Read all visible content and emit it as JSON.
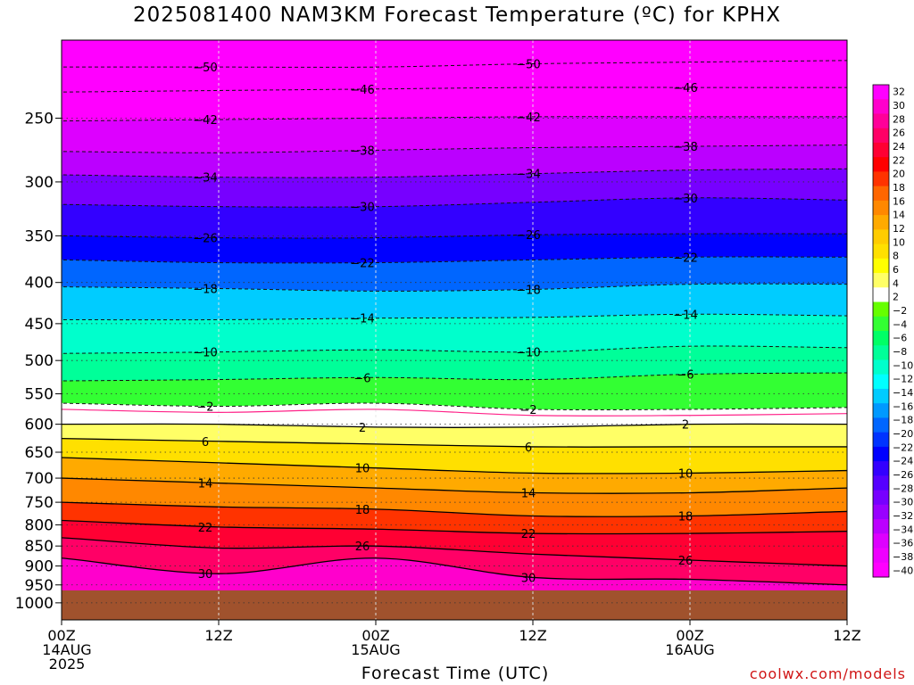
{
  "title": "2025081400 NAM3KM Forecast Temperature (ºC) for KPHX",
  "credit": "coolwx.com/models",
  "chart_data": {
    "type": "heatmap",
    "title": "2025081400 NAM3KM Forecast Temperature (ºC) for KPHX",
    "xlabel": "Forecast Time (UTC)",
    "ylabel": "",
    "y_scale": "log pressure (hPa), inverted",
    "ylim": [
      1050,
      200
    ],
    "xlim_hours": [
      0,
      60
    ],
    "x_ticks": [
      {
        "hour": 0,
        "lines": [
          "00Z",
          "14AUG",
          "2025"
        ]
      },
      {
        "hour": 12,
        "lines": [
          "12Z"
        ]
      },
      {
        "hour": 24,
        "lines": [
          "00Z",
          "15AUG"
        ]
      },
      {
        "hour": 36,
        "lines": [
          "12Z"
        ]
      },
      {
        "hour": 48,
        "lines": [
          "00Z",
          "16AUG"
        ]
      },
      {
        "hour": 60,
        "lines": [
          "12Z"
        ]
      }
    ],
    "y_ticks": [
      250,
      300,
      350,
      400,
      450,
      500,
      550,
      600,
      650,
      700,
      750,
      800,
      850,
      900,
      950,
      1000
    ],
    "grid": true,
    "surface_pressure_hpa": 965,
    "colorbar": {
      "labels": [
        32,
        30,
        28,
        26,
        24,
        22,
        20,
        18,
        16,
        14,
        12,
        10,
        8,
        6,
        4,
        2,
        -2,
        -4,
        -6,
        -8,
        -10,
        -12,
        -14,
        -16,
        -18,
        -20,
        -22,
        -24,
        -26,
        -28,
        -30,
        -32,
        -34,
        -36,
        -38,
        -40
      ],
      "colors": [
        "#ff00ff",
        "#ff00cc",
        "#ff0099",
        "#ff0066",
        "#ff0033",
        "#ff0000",
        "#ff3300",
        "#ff6600",
        "#ff8800",
        "#ffaa00",
        "#ffcc00",
        "#ffe000",
        "#ffff00",
        "#ffff66",
        "#ffffff",
        "#66ff00",
        "#33ff33",
        "#00ff66",
        "#00ff99",
        "#00ffcc",
        "#00ffff",
        "#00ccff",
        "#0099ff",
        "#0066ff",
        "#0033ff",
        "#0000ff",
        "#3300ff",
        "#5500ff",
        "#7700ff",
        "#9900ff",
        "#bb00ff",
        "#dd00ff",
        "#ee00ff",
        "#ff00ff"
      ]
    },
    "series": [
      {
        "label": "-50",
        "values": [
          216,
          216,
          216,
          214,
          213,
          212
        ]
      },
      {
        "label": "-46",
        "values": [
          232,
          231,
          230,
          229,
          229,
          229
        ]
      },
      {
        "label": "-42",
        "values": [
          252,
          251,
          250,
          249,
          249,
          249
        ]
      },
      {
        "label": "-38",
        "values": [
          275,
          276,
          274,
          272,
          271,
          270
        ]
      },
      {
        "label": "-34",
        "values": [
          294,
          296,
          296,
          293,
          290,
          289
        ]
      },
      {
        "label": "-30",
        "values": [
          320,
          322,
          322,
          318,
          314,
          316
        ]
      },
      {
        "label": "-26",
        "values": [
          350,
          352,
          352,
          349,
          348,
          348
        ]
      },
      {
        "label": "-22",
        "values": [
          375,
          378,
          378,
          375,
          372,
          372
        ]
      },
      {
        "label": "-18",
        "values": [
          405,
          407,
          410,
          408,
          402,
          402
        ]
      },
      {
        "label": "-14",
        "values": [
          445,
          445,
          443,
          442,
          438,
          440
        ]
      },
      {
        "label": "-10",
        "values": [
          490,
          488,
          485,
          488,
          480,
          482
        ]
      },
      {
        "label": "-6",
        "values": [
          530,
          528,
          525,
          528,
          520,
          518
        ]
      },
      {
        "label": "-2",
        "values": [
          565,
          570,
          565,
          575,
          575,
          572
        ]
      },
      {
        "label": "2",
        "values": [
          600,
          600,
          605,
          605,
          600,
          600
        ]
      },
      {
        "label": "6",
        "values": [
          625,
          630,
          635,
          640,
          640,
          640
        ]
      },
      {
        "label": "10",
        "values": [
          660,
          670,
          680,
          690,
          690,
          685
        ]
      },
      {
        "label": "14",
        "values": [
          700,
          710,
          720,
          730,
          730,
          720
        ]
      },
      {
        "label": "18",
        "values": [
          750,
          760,
          765,
          780,
          780,
          770
        ]
      },
      {
        "label": "22",
        "values": [
          790,
          805,
          810,
          820,
          820,
          815
        ]
      },
      {
        "label": "26",
        "values": [
          830,
          855,
          850,
          870,
          885,
          900
        ]
      },
      {
        "label": "30",
        "values": [
          880,
          920,
          880,
          930,
          935,
          950
        ]
      }
    ]
  }
}
